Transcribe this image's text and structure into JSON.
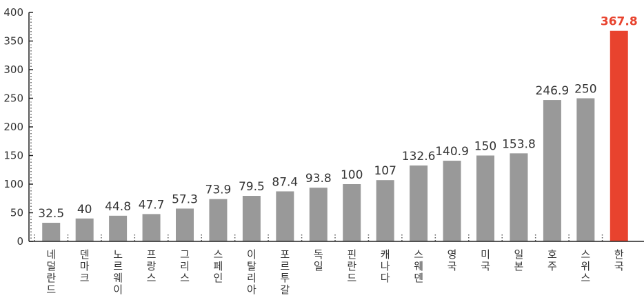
{
  "chart_data": {
    "type": "bar",
    "title": "",
    "xlabel": "",
    "ylabel": "",
    "ylim": [
      0,
      400
    ],
    "yticks": [
      0,
      50,
      100,
      150,
      200,
      250,
      300,
      350,
      400
    ],
    "grid": false,
    "categories": [
      "네덜란드",
      "덴마크",
      "노르웨이",
      "프랑스",
      "그리스",
      "스페인",
      "이탈리아",
      "포르투갈",
      "독일",
      "핀란드",
      "캐나다",
      "스웨덴",
      "영국",
      "미국",
      "일본",
      "호주",
      "스위스",
      "한국"
    ],
    "values": [
      32.5,
      40,
      44.8,
      47.7,
      57.3,
      73.9,
      79.5,
      87.4,
      93.8,
      100,
      107,
      132.6,
      140.9,
      150,
      153.8,
      246.9,
      250,
      367.8
    ],
    "value_labels": [
      "32.5",
      "40",
      "44.8",
      "47.7",
      "57.3",
      "73.9",
      "79.5",
      "87.4",
      "93.8",
      "100",
      "107",
      "132.6",
      "140.9",
      "150",
      "153.8",
      "246.9",
      "250",
      "367.8"
    ],
    "highlight_index": 17,
    "colors": {
      "bar": "#999999",
      "highlight": "#e8432e",
      "axis": "#222222"
    }
  }
}
